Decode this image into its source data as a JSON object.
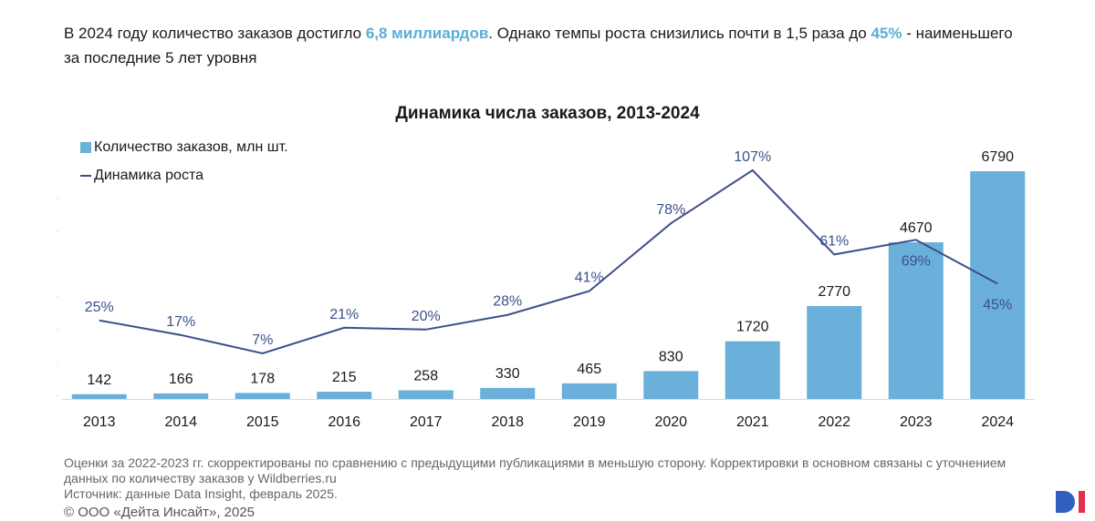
{
  "headline": {
    "part1": "В 2024 году количество заказов достигло ",
    "highlight1": "6,8 миллиардов",
    "part2": ". Однако темпы роста снизились почти в 1,5 раза до ",
    "highlight2": "45%",
    "part3": " - наименьшего за последние 5 лет уровня"
  },
  "colors": {
    "bar": "#6ab0da",
    "line": "#3d4f8a",
    "accent": "#5aaed6",
    "logo_blue": "#2f5fc0",
    "logo_red": "#e0304a"
  },
  "chart_data": {
    "type": "bar",
    "title": "Динамика числа заказов, 2013-2024",
    "xlabel": "",
    "ylabel": "",
    "categories": [
      "2013",
      "2014",
      "2015",
      "2016",
      "2017",
      "2018",
      "2019",
      "2020",
      "2021",
      "2022",
      "2023",
      "2024"
    ],
    "legend_position": "top-left",
    "series": [
      {
        "name": "Количество заказов, млн шт.",
        "type": "bar",
        "values": [
          142,
          166,
          178,
          215,
          258,
          330,
          465,
          830,
          1720,
          2770,
          4670,
          6790
        ],
        "labels": [
          "142",
          "166",
          "178",
          "215",
          "258",
          "330",
          "465",
          "830",
          "1720",
          "2770",
          "4670",
          "6790"
        ]
      },
      {
        "name": "Динамика роста",
        "type": "line",
        "values": [
          25,
          17,
          7,
          21,
          20,
          28,
          41,
          78,
          107,
          61,
          69,
          45
        ],
        "labels": [
          "25%",
          "17%",
          "7%",
          "21%",
          "20%",
          "28%",
          "41%",
          "78%",
          "107%",
          "61%",
          "69%",
          "45%"
        ]
      }
    ]
  },
  "notes": {
    "line1": "Оценки за 2022-2023 гг. скорректированы по сравнению с предыдущими публикациями в меньшую сторону. Корректировки в основном связаны с уточнением данных по количеству заказов у Wildberries.ru",
    "line2": "Источник: данные Data Insight, февраль 2025."
  },
  "copyright": "© ООО «Дейта Инсайт», 2025",
  "logo_icon": "data-insight-logo-icon"
}
